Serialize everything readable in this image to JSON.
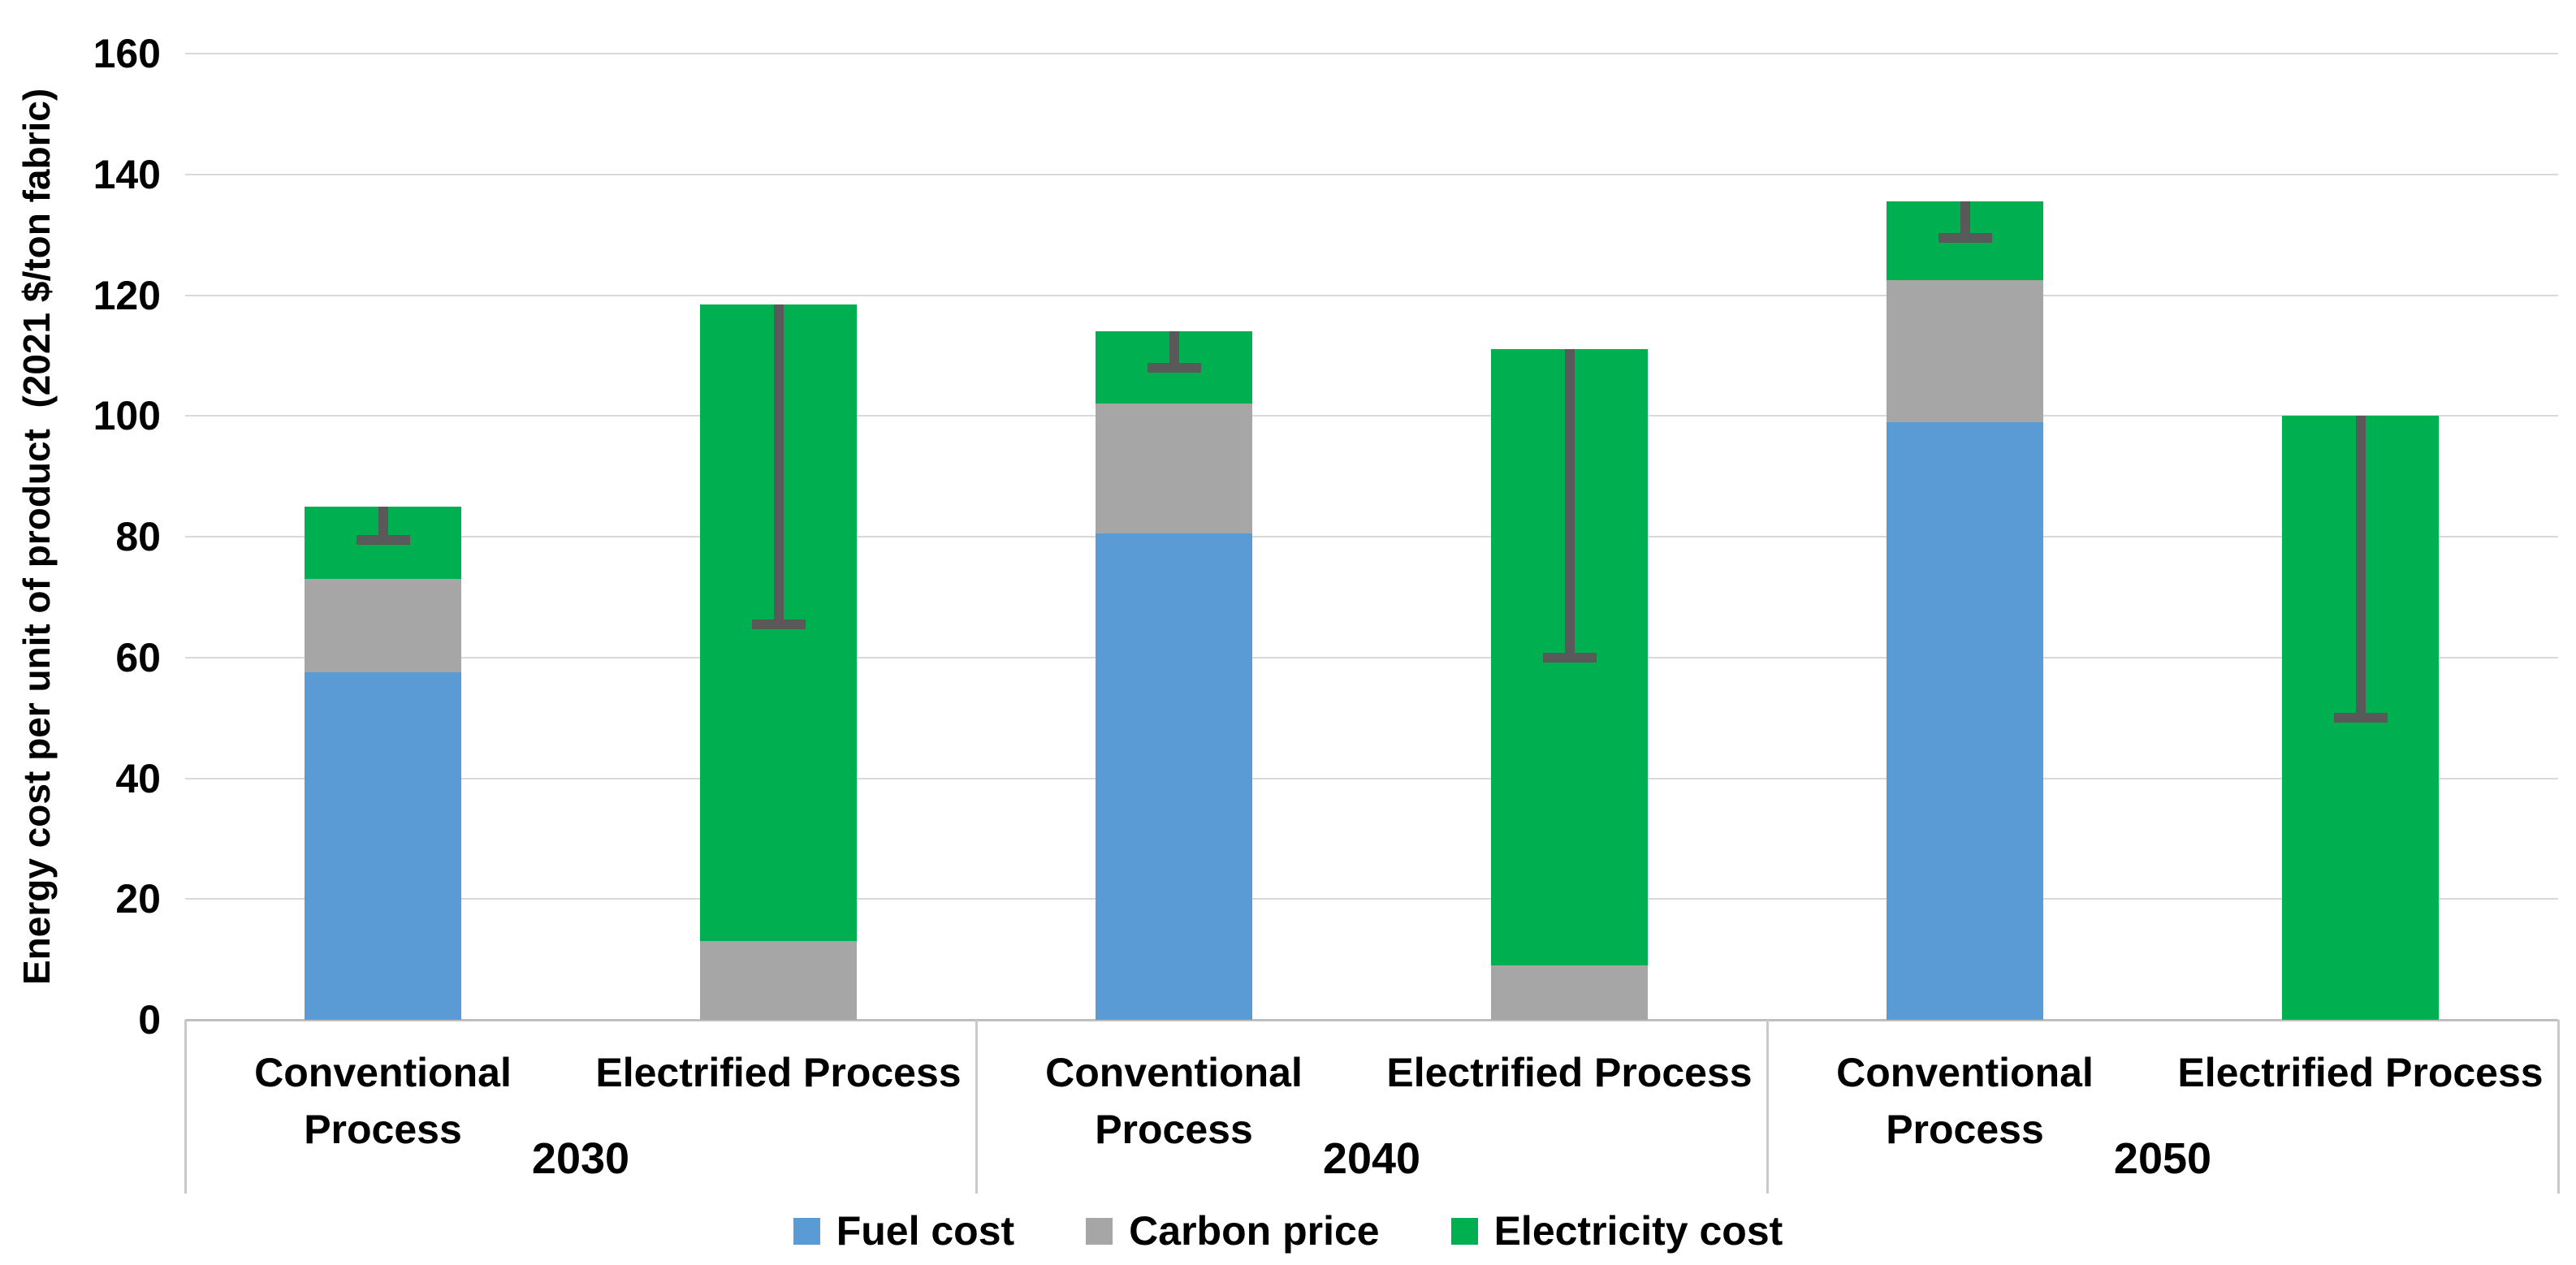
{
  "chart_data": {
    "type": "bar",
    "stacked": true,
    "ylabel": "Energy cost per unit of product  (2021 $/ton fabric)",
    "xlabel": "",
    "ylim": [
      0,
      160
    ],
    "ytick_step": 20,
    "grid": true,
    "legend_position": "bottom",
    "groups": [
      "2030",
      "2040",
      "2050"
    ],
    "process_labels": [
      "Conventional Process",
      "Electrified Process"
    ],
    "bar_labels": [
      "2030 Conventional Process",
      "2030 Electrified Process",
      "2040 Conventional Process",
      "2040 Electrified Process",
      "2050 Conventional Process",
      "2050 Electrified Process"
    ],
    "series": [
      {
        "name": "Fuel cost",
        "color": "#5B9BD5",
        "values": [
          57.5,
          0,
          80.5,
          0,
          99,
          0
        ]
      },
      {
        "name": "Carbon price",
        "color": "#A6A6A6",
        "values": [
          15.5,
          13,
          21.5,
          9,
          23.5,
          0
        ]
      },
      {
        "name": "Electricity cost",
        "color": "#00B050",
        "values": [
          12,
          105.5,
          12,
          102,
          13,
          100
        ]
      }
    ],
    "bar_totals": [
      85,
      118.5,
      114,
      111,
      135.5,
      100
    ],
    "error_bars": {
      "color": "#595959",
      "high": [
        85,
        118.5,
        114,
        111,
        135.5,
        100
      ],
      "low": [
        79.5,
        65.5,
        108,
        60,
        129.5,
        50
      ]
    },
    "colors": {
      "gridline": "#D9D9D9",
      "axis_line": "#BFBFBF",
      "divider": "#C9C9C9",
      "text": "#000000",
      "background": "#FFFFFF"
    }
  }
}
